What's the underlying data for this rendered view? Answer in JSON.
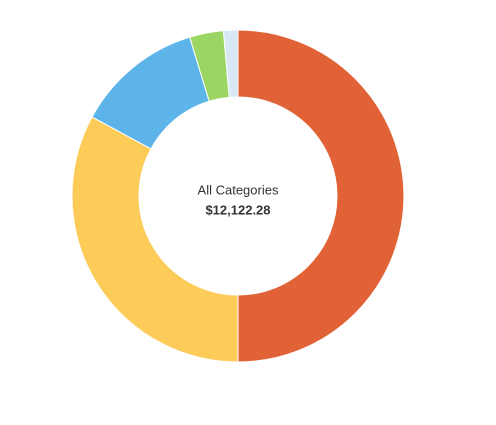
{
  "chart_data": {
    "type": "donut",
    "center_label": "All Categories",
    "center_total": "$12,122.28",
    "values": [
      50.0,
      32.9,
      12.4,
      3.3,
      1.4
    ],
    "colors": [
      "#e16237",
      "#fdcb58",
      "#5db4e8",
      "#9bd563",
      "#d9e8f5"
    ]
  }
}
